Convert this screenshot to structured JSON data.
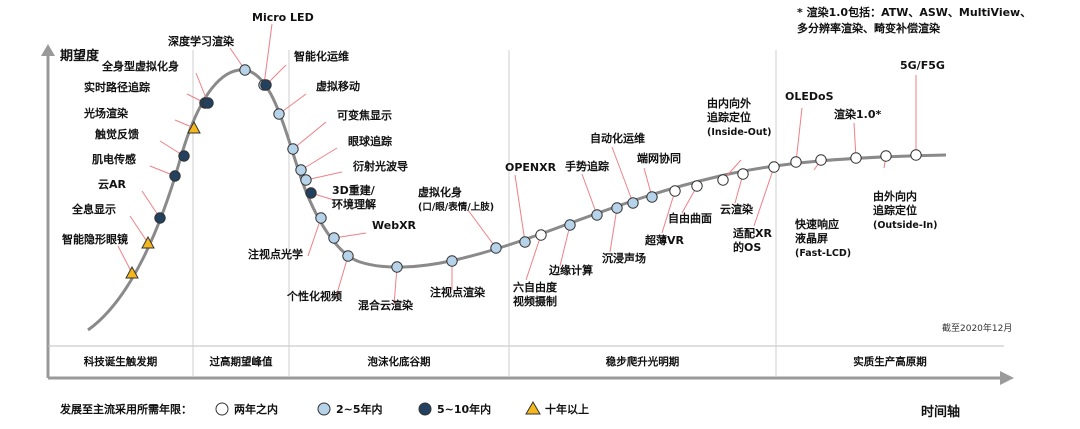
{
  "chart_data": {
    "type": "hype-cycle",
    "y_axis_label": "期望度",
    "x_axis_label": "时间轴",
    "phases": [
      "科技诞生触发期",
      "过高期望峰值",
      "泡沫化底谷期",
      "稳步爬升光明期",
      "实质生产高原期"
    ],
    "date_note": "截至2020年12月",
    "header_note_line1": "* 渲染1.0包括：ATW、ASW、MultiView、",
    "header_note_line2": "多分辨率渲染、畸变补偿渲染",
    "legend": {
      "title": "发展至主流采用所需年限：",
      "categories": [
        {
          "key": "lt2",
          "label": "两年之内",
          "marker": "circle",
          "color": "#ffffff"
        },
        {
          "key": "2to5",
          "label": "2~5年内",
          "marker": "circle",
          "color": "#b7d3ea"
        },
        {
          "key": "5to10",
          "label": "5~10年内",
          "marker": "circle",
          "color": "#23405e"
        },
        {
          "key": "gt10",
          "label": "十年以上",
          "marker": "triangle",
          "color": "#f4b71c"
        }
      ]
    },
    "technologies": [
      {
        "name": "智能隐形眼镜",
        "category": "gt10"
      },
      {
        "name": "全息显示",
        "category": "gt10"
      },
      {
        "name": "云AR",
        "category": "5to10"
      },
      {
        "name": "肌电传感",
        "category": "5to10"
      },
      {
        "name": "触觉反馈",
        "category": "5to10"
      },
      {
        "name": "光场渲染",
        "category": "gt10"
      },
      {
        "name": "实时路径追踪",
        "category": "5to10"
      },
      {
        "name": "全身型虚拟化身",
        "category": "5to10"
      },
      {
        "name": "深度学习渲染",
        "category": "2to5"
      },
      {
        "name": "Micro LED",
        "category": "2to5"
      },
      {
        "name": "智能化运维",
        "category": "5to10"
      },
      {
        "name": "虚拟移动",
        "category": "2to5"
      },
      {
        "name": "可变焦显示",
        "category": "2to5"
      },
      {
        "name": "眼球追踪",
        "category": "2to5"
      },
      {
        "name": "衍射光波导",
        "category": "2to5"
      },
      {
        "name": "3D重建/环境理解",
        "category": "5to10"
      },
      {
        "name": "注视点光学",
        "category": "2to5"
      },
      {
        "name": "WebXR",
        "category": "2to5"
      },
      {
        "name": "个性化视频",
        "category": "2to5"
      },
      {
        "name": "混合云渲染",
        "category": "2to5"
      },
      {
        "name": "注视点渲染",
        "category": "2to5"
      },
      {
        "name": "虚拟化身(口/眼/表情/上肢)",
        "category": "2to5"
      },
      {
        "name": "OPENXR",
        "category": "2to5"
      },
      {
        "name": "六自由度视频摄制",
        "category": "lt2"
      },
      {
        "name": "边缘计算",
        "category": "2to5"
      },
      {
        "name": "手势追踪",
        "category": "2to5"
      },
      {
        "name": "沉浸声场",
        "category": "2to5"
      },
      {
        "name": "自动化运维",
        "category": "2to5"
      },
      {
        "name": "端网协同",
        "category": "2to5"
      },
      {
        "name": "超薄VR",
        "category": "lt2"
      },
      {
        "name": "自由曲面",
        "category": "lt2"
      },
      {
        "name": "由内向外追踪定位(Inside-Out)",
        "category": "lt2"
      },
      {
        "name": "云渲染",
        "category": "lt2"
      },
      {
        "name": "适配XR的OS",
        "category": "lt2"
      },
      {
        "name": "OLEDoS",
        "category": "lt2"
      },
      {
        "name": "快速响应液晶屏(Fast-LCD)",
        "category": "lt2"
      },
      {
        "name": "渲染1.0*",
        "category": "lt2"
      },
      {
        "name": "由外向内追踪定位(Outside-In)",
        "category": "lt2"
      },
      {
        "name": "5G/F5G",
        "category": "lt2"
      }
    ]
  }
}
